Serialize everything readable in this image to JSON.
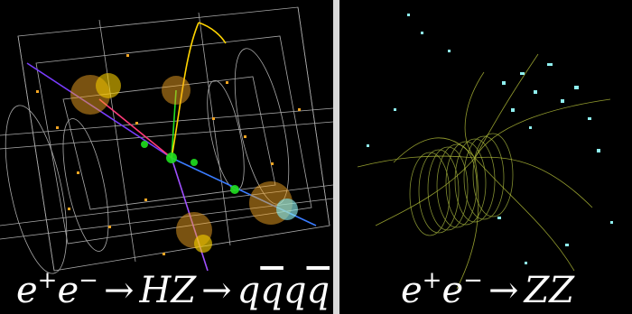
{
  "left_panel": {
    "caption": {
      "e1": "e",
      "plus": "+",
      "e2": "e",
      "minus": "−",
      "arrow1": "→",
      "hz": "HZ",
      "arrow2": "→",
      "q1": "q",
      "q2": "q",
      "q3": "q",
      "q4": "q"
    }
  },
  "right_panel": {
    "caption": {
      "e1": "e",
      "plus": "+",
      "e2": "e",
      "minus": "−",
      "arrow": "→",
      "zz": "ZZ"
    }
  },
  "colors": {
    "background": "#000000",
    "divider": "#d8d8d8",
    "detector_lines": "#c8c8c8",
    "hits_orange": "#f5a623",
    "hits_yellow": "#ffd400",
    "hits_green": "#20e020",
    "hits_cyan": "#8ff0f0",
    "tracks_olive": "#9aa83a"
  }
}
